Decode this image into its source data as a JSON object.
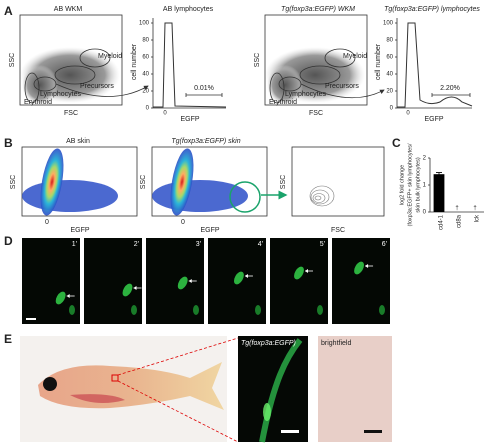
{
  "panels": {
    "a": {
      "label": "A",
      "plots": [
        {
          "title": "AB WKM",
          "x_label": "FSC",
          "y_label": "SSC",
          "gates": [
            "Myeloid",
            "Precursors",
            "Lymphocytes",
            "Erythroid"
          ]
        },
        {
          "title": "AB lymphocytes",
          "x_label": "EGFP",
          "y_label": "cell number",
          "ylim": [
            0,
            100
          ],
          "yticks": [
            0,
            20,
            40,
            60,
            80,
            100
          ],
          "xticks": [
            0
          ],
          "gate_label": "0.01%"
        },
        {
          "title": "Tg(foxp3a:EGFP) WKM",
          "x_label": "FSC",
          "y_label": "SSC",
          "gates": [
            "Myeloid",
            "Precursors",
            "Lymphocytes",
            "Erythroid"
          ]
        },
        {
          "title": "Tg(foxp3a:EGFP) lymphocytes",
          "x_label": "EGFP",
          "y_label": "cell number",
          "ylim": [
            0,
            100
          ],
          "yticks": [
            0,
            20,
            40,
            60,
            80,
            100
          ],
          "xticks": [
            0
          ],
          "gate_label": "2.20%"
        }
      ]
    },
    "b": {
      "label": "B",
      "plots": [
        {
          "title": "AB skin",
          "x_label": "EGFP",
          "y_label": "SSC",
          "xticks": [
            0
          ]
        },
        {
          "title": "Tg(foxp3a:EGFP) skin",
          "x_label": "EGFP",
          "y_label": "SSC",
          "xticks": [
            0
          ]
        },
        {
          "x_label": "FSC",
          "y_label": "SSC"
        }
      ]
    },
    "c": {
      "label": "C",
      "type": "bar",
      "y_label": [
        "log2 fold change",
        "(foxp3a:EGFP+ skin lymphocytes/",
        "skin bulk lymphocytes)"
      ],
      "categories": [
        "cd4-1",
        "cd8a",
        "lck"
      ],
      "values": [
        1.4,
        0,
        0
      ],
      "errors": [
        0.06,
        null,
        null
      ],
      "markers": [
        null,
        "†",
        "†"
      ],
      "ylim": [
        0,
        2
      ],
      "yticks": [
        0,
        1,
        2
      ],
      "color": "#000000"
    },
    "d": {
      "label": "D",
      "frames": [
        "1'",
        "2'",
        "3'",
        "4'",
        "5'",
        "6'"
      ]
    },
    "e": {
      "label": "E",
      "fluorescence_title": "Tg(foxp3a:EGFP)",
      "brightfield_title": "brightfield"
    }
  }
}
